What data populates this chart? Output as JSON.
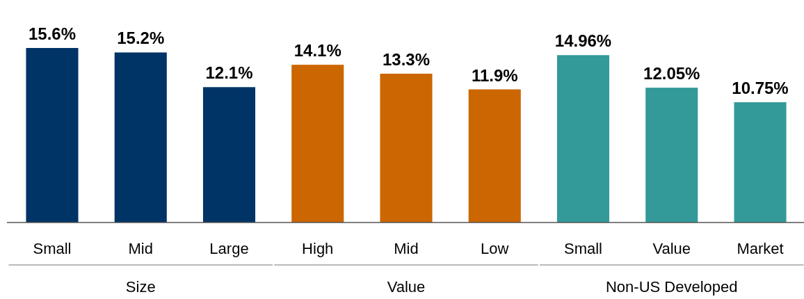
{
  "chart_data": {
    "type": "bar",
    "categories": [
      "Small",
      "Mid",
      "Large",
      "High",
      "Mid",
      "Low",
      "Small",
      "Value",
      "Market"
    ],
    "series": [
      {
        "color": "#003366",
        "values": [
          15.6,
          15.2,
          12.1,
          null,
          null,
          null,
          null,
          null,
          null
        ],
        "value_labels": [
          "15.6%",
          "15.2%",
          "12.1%",
          null,
          null,
          null,
          null,
          null,
          null
        ]
      },
      {
        "color": "#cc6600",
        "values": [
          null,
          null,
          null,
          14.1,
          13.3,
          11.9,
          null,
          null,
          null
        ],
        "value_labels": [
          null,
          null,
          null,
          "14.1%",
          "13.3%",
          "11.9%",
          null,
          null,
          null
        ]
      },
      {
        "color": "#339999",
        "values": [
          null,
          null,
          null,
          null,
          null,
          null,
          14.96,
          12.05,
          10.75
        ],
        "value_labels": [
          null,
          null,
          null,
          null,
          null,
          null,
          "14.96%",
          "12.05%",
          "10.75%"
        ]
      }
    ],
    "annotations": [
      "Size",
      "Value",
      "Non-US Developed"
    ]
  }
}
